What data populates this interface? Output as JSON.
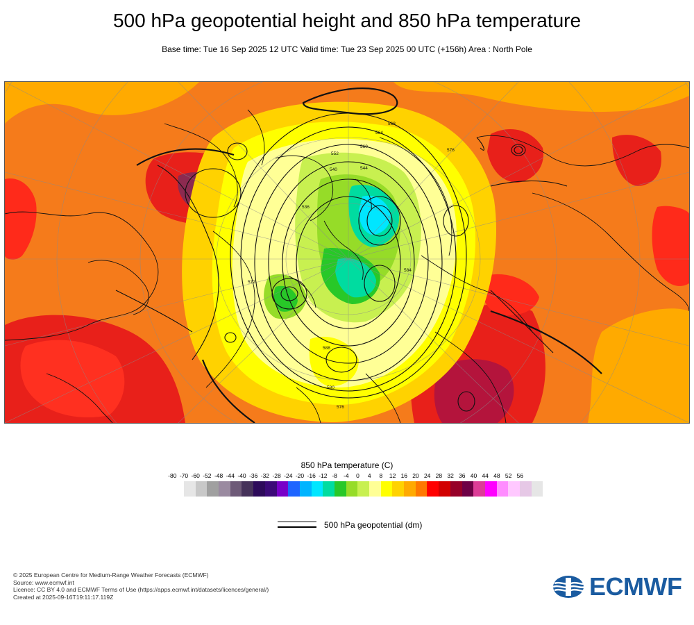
{
  "header": {
    "title": "500 hPa geopotential height and 850 hPa temperature",
    "subtitle": "Base time: Tue 16 Sep 2025 12 UTC Valid time: Tue 23 Sep 2025 00 UTC (+156h) Area : North Pole"
  },
  "map": {
    "contour_labels": [
      "536",
      "540",
      "544",
      "552",
      "560",
      "564",
      "568",
      "576",
      "584",
      "588",
      "580",
      "576",
      "572"
    ]
  },
  "colorbar": {
    "title": "850 hPa temperature (C)",
    "ticks": [
      "-80",
      "-70",
      "-60",
      "-52",
      "-48",
      "-44",
      "-40",
      "-36",
      "-32",
      "-28",
      "-24",
      "-20",
      "-16",
      "-12",
      "-8",
      "-4",
      "0",
      "4",
      "8",
      "12",
      "16",
      "20",
      "24",
      "28",
      "32",
      "36",
      "40",
      "44",
      "48",
      "52",
      "56"
    ],
    "colors": [
      "#e6e6e6",
      "#c8c8c8",
      "#a0a0a0",
      "#9a8aa0",
      "#6e5a78",
      "#46325a",
      "#2d0a5a",
      "#3c0a78",
      "#7800c8",
      "#1e64ff",
      "#00b4ff",
      "#00e6ff",
      "#00dca0",
      "#28c828",
      "#96dc28",
      "#c8f050",
      "#ffff96",
      "#ffff00",
      "#ffd200",
      "#ffaa00",
      "#ff7800",
      "#ff0000",
      "#d20000",
      "#960028",
      "#6e0046",
      "#dc3c96",
      "#ff00ff",
      "#ff8cff",
      "#ffc8ff",
      "#e6c8e6",
      "#e6e6e6"
    ]
  },
  "legend": {
    "label": "500 hPa geopotential (dm)"
  },
  "footer": {
    "lines": [
      "© 2025 European Centre for Medium-Range Weather Forecasts (ECMWF)",
      "Source: www.ecmwf.int",
      "Licence: CC BY 4.0 and ECMWF Terms of Use (https://apps.ecmwf.int/datasets/licences/general/)",
      "Created at 2025-09-16T19:11:17.119Z"
    ]
  },
  "logo": {
    "text": "ECMWF",
    "color": "#1a5ba0"
  }
}
